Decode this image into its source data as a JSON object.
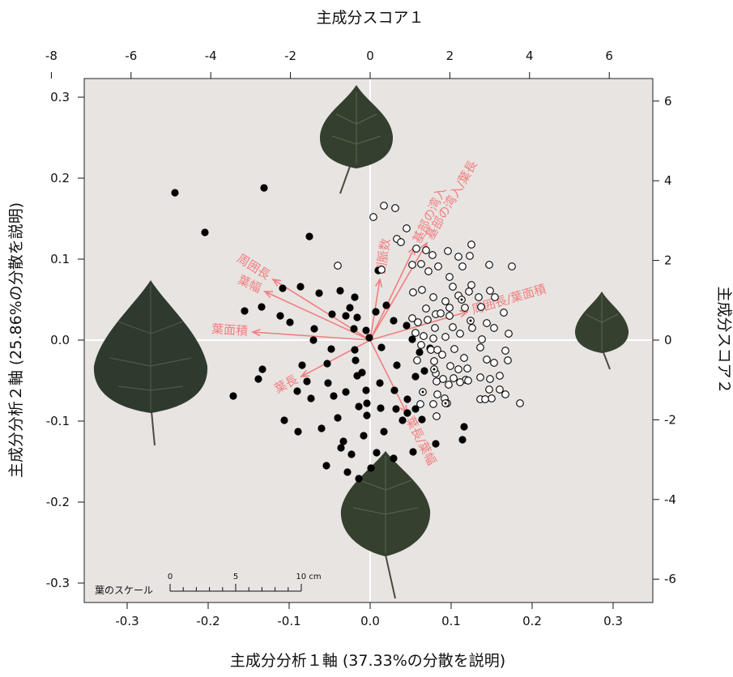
{
  "chart_data": {
    "type": "scatter",
    "title": "",
    "xlabel": "主成分分析１軸 (37.33%の分散を説明)",
    "ylabel": "主成分分析２軸 (25.86%の分散を説明)",
    "top_axis_label": "主成分スコア１",
    "right_axis_label": "主成分スコア２",
    "xlim": [
      -0.32,
      0.32
    ],
    "ylim": [
      -0.325,
      0.325
    ],
    "xticks": [
      "-0.3",
      "-0.2",
      "-0.1",
      "0.0",
      "0.1",
      "0.2",
      "0.3"
    ],
    "yticks": [
      "-0.3",
      "-0.2",
      "-0.1",
      "0.0",
      "0.1",
      "0.2",
      "0.3"
    ],
    "top_ticks": [
      "-8",
      "-6",
      "-4",
      "-2",
      "0",
      "2",
      "4",
      "6"
    ],
    "right_ticks": [
      "-6",
      "-4",
      "-2",
      "0",
      "2",
      "4",
      "6"
    ],
    "score_scale": 0.0492,
    "colors": {
      "panel": "#e8e4e2",
      "zero_line": "#ffffff",
      "vector": "#f07f80",
      "point": "#000000"
    },
    "scale_bar": {
      "label": "葉のスケール",
      "unit_ticks": [
        "0",
        "5",
        "10 cm"
      ]
    },
    "vectors": [
      {
        "label": "周囲長",
        "x": -0.12,
        "y": 0.075
      },
      {
        "label": "葉幅",
        "x": -0.13,
        "y": 0.06
      },
      {
        "label": "葉面積",
        "x": -0.145,
        "y": 0.01
      },
      {
        "label": "葉長",
        "x": -0.085,
        "y": -0.045
      },
      {
        "label": "側脈数",
        "x": 0.012,
        "y": 0.075
      },
      {
        "label": "基部の湾入",
        "x": 0.055,
        "y": 0.115
      },
      {
        "label": "基部の湾入/葉長",
        "x": 0.07,
        "y": 0.12
      },
      {
        "label": "周囲長/葉面積",
        "x": 0.12,
        "y": 0.035
      },
      {
        "label": "葉長/葉幅",
        "x": 0.045,
        "y": -0.09
      }
    ],
    "series": [
      {
        "marker": "filled",
        "points": [
          [
            -0.241,
            0.182
          ],
          [
            -0.131,
            0.188
          ],
          [
            -0.204,
            0.133
          ],
          [
            -0.075,
            0.128
          ],
          [
            -0.108,
            0.064
          ],
          [
            -0.086,
            0.066
          ],
          [
            -0.063,
            0.058
          ],
          [
            -0.037,
            0.061
          ],
          [
            -0.019,
            0.053
          ],
          [
            -0.134,
            0.041
          ],
          [
            -0.155,
            0.036
          ],
          [
            -0.111,
            0.03
          ],
          [
            -0.099,
            0.022
          ],
          [
            -0.047,
            0.032
          ],
          [
            -0.03,
            0.03
          ],
          [
            -0.016,
            0.028
          ],
          [
            -0.069,
            0.014
          ],
          [
            -0.02,
            0.014
          ],
          [
            -0.005,
            0.012
          ],
          [
            0.007,
            0.035
          ],
          [
            0.029,
            0.024
          ],
          [
            0.045,
            0.018
          ],
          [
            0.052,
            0.001
          ],
          [
            -0.048,
            -0.011
          ],
          [
            -0.019,
            -0.012
          ],
          [
            -0.053,
            -0.029
          ],
          [
            0.014,
            -0.009
          ],
          [
            -0.084,
            -0.031
          ],
          [
            -0.133,
            -0.036
          ],
          [
            -0.138,
            -0.048
          ],
          [
            -0.078,
            -0.051
          ],
          [
            -0.052,
            -0.053
          ],
          [
            -0.01,
            -0.04
          ],
          [
            -0.005,
            -0.062
          ],
          [
            0.012,
            -0.053
          ],
          [
            0.033,
            -0.031
          ],
          [
            0.056,
            -0.045
          ],
          [
            0.067,
            -0.038
          ],
          [
            -0.016,
            -0.044
          ],
          [
            -0.03,
            -0.064
          ],
          [
            -0.045,
            -0.069
          ],
          [
            -0.073,
            -0.072
          ],
          [
            -0.09,
            -0.063
          ],
          [
            -0.169,
            -0.069
          ],
          [
            -0.014,
            -0.082
          ],
          [
            0.013,
            -0.084
          ],
          [
            0.032,
            -0.085
          ],
          [
            0.046,
            -0.09
          ],
          [
            -0.106,
            -0.099
          ],
          [
            -0.089,
            -0.113
          ],
          [
            -0.06,
            -0.109
          ],
          [
            -0.04,
            -0.096
          ],
          [
            -0.004,
            -0.093
          ],
          [
            -0.008,
            -0.118
          ],
          [
            0.017,
            -0.113
          ],
          [
            0.04,
            -0.099
          ],
          [
            0.064,
            -0.098
          ],
          [
            0.056,
            -0.085
          ],
          [
            0.116,
            -0.107
          ],
          [
            0.114,
            -0.123
          ],
          [
            0.081,
            -0.128
          ],
          [
            -0.033,
            -0.125
          ],
          [
            -0.054,
            -0.155
          ],
          [
            -0.023,
            -0.141
          ],
          [
            0.008,
            -0.139
          ],
          [
            0.029,
            -0.146
          ],
          [
            -0.028,
            -0.163
          ],
          [
            0.001,
            -0.158
          ],
          [
            -0.014,
            -0.171
          ],
          [
            -0.004,
            -0.078
          ],
          [
            -0.07,
            0.0
          ],
          [
            0.02,
            0.043
          ],
          [
            -0.018,
            -0.025
          ],
          [
            0.03,
            -0.062
          ],
          [
            0.061,
            -0.015
          ],
          [
            0.046,
            -0.073
          ],
          [
            -0.036,
            -0.133
          ],
          [
            0.053,
            -0.138
          ],
          [
            -0.025,
            0.04
          ],
          [
            -0.001,
            0.003
          ],
          [
            0.074,
            -0.01
          ],
          [
            0.01,
            0.086
          ]
        ]
      },
      {
        "marker": "open",
        "points": [
          [
            0.004,
            0.152
          ],
          [
            0.031,
            0.163
          ],
          [
            0.017,
            0.166
          ],
          [
            0.045,
            0.138
          ],
          [
            0.033,
            0.125
          ],
          [
            0.038,
            0.121
          ],
          [
            0.057,
            0.113
          ],
          [
            0.069,
            0.111
          ],
          [
            0.077,
            0.105
          ],
          [
            0.063,
            0.094
          ],
          [
            0.052,
            0.093
          ],
          [
            0.084,
            0.091
          ],
          [
            0.096,
            0.11
          ],
          [
            0.109,
            0.103
          ],
          [
            0.114,
            0.091
          ],
          [
            0.123,
            0.104
          ],
          [
            0.125,
            0.118
          ],
          [
            0.147,
            0.093
          ],
          [
            0.175,
            0.091
          ],
          [
            -0.04,
            0.092
          ],
          [
            0.014,
            0.087
          ],
          [
            0.072,
            0.085
          ],
          [
            0.098,
            0.078
          ],
          [
            0.102,
            0.066
          ],
          [
            0.125,
            0.068
          ],
          [
            0.148,
            0.061
          ],
          [
            0.134,
            0.053
          ],
          [
            0.154,
            0.053
          ],
          [
            0.064,
            0.062
          ],
          [
            0.053,
            0.059
          ],
          [
            0.078,
            0.053
          ],
          [
            0.093,
            0.048
          ],
          [
            0.109,
            0.055
          ],
          [
            0.122,
            0.06
          ],
          [
            0.137,
            0.041
          ],
          [
            0.069,
            0.039
          ],
          [
            0.081,
            0.032
          ],
          [
            0.087,
            0.033
          ],
          [
            0.098,
            0.03
          ],
          [
            0.144,
            0.021
          ],
          [
            0.165,
            0.034
          ],
          [
            0.052,
            0.027
          ],
          [
            0.059,
            0.022
          ],
          [
            0.071,
            0.025
          ],
          [
            0.08,
            0.015
          ],
          [
            0.102,
            0.016
          ],
          [
            0.126,
            0.015
          ],
          [
            0.153,
            0.015
          ],
          [
            0.171,
            0.008
          ],
          [
            0.056,
            0.009
          ],
          [
            0.066,
            0.005
          ],
          [
            0.078,
            0.002
          ],
          [
            0.093,
            0.004
          ],
          [
            0.111,
            0.008
          ],
          [
            0.138,
            0.001
          ],
          [
            0.063,
            -0.006
          ],
          [
            0.075,
            -0.012
          ],
          [
            0.083,
            -0.012
          ],
          [
            0.104,
            -0.011
          ],
          [
            0.136,
            -0.009
          ],
          [
            0.167,
            -0.013
          ],
          [
            0.089,
            -0.018
          ],
          [
            0.116,
            -0.022
          ],
          [
            0.144,
            -0.024
          ],
          [
            0.058,
            -0.025
          ],
          [
            0.079,
            -0.026
          ],
          [
            0.099,
            -0.032
          ],
          [
            0.109,
            -0.036
          ],
          [
            0.12,
            -0.035
          ],
          [
            0.153,
            -0.028
          ],
          [
            0.17,
            -0.025
          ],
          [
            0.081,
            -0.041
          ],
          [
            0.09,
            -0.048
          ],
          [
            0.103,
            -0.047
          ],
          [
            0.118,
            -0.049
          ],
          [
            0.136,
            -0.046
          ],
          [
            0.148,
            -0.048
          ],
          [
            0.16,
            -0.044
          ],
          [
            0.082,
            -0.051
          ],
          [
            0.097,
            -0.055
          ],
          [
            0.111,
            -0.052
          ],
          [
            0.121,
            -0.05
          ],
          [
            0.147,
            -0.061
          ],
          [
            0.16,
            -0.061
          ],
          [
            0.083,
            -0.067
          ],
          [
            0.092,
            -0.072
          ],
          [
            0.136,
            -0.073
          ],
          [
            0.15,
            -0.072
          ],
          [
            0.167,
            -0.067
          ],
          [
            0.078,
            -0.079
          ],
          [
            0.095,
            -0.078
          ],
          [
            0.142,
            -0.073
          ],
          [
            0.185,
            -0.078
          ],
          [
            0.082,
            -0.094
          ],
          [
            0.062,
            -0.079
          ],
          [
            0.117,
            0.04
          ],
          [
            0.098,
            0.04
          ]
        ]
      },
      {
        "marker": "dotted-open",
        "points": [
          [
            0.113,
            0.05
          ],
          [
            0.124,
            0.024
          ],
          [
            0.079,
            -0.036
          ],
          [
            0.065,
            -0.064
          ],
          [
            0.093,
            -0.078
          ]
        ]
      }
    ]
  }
}
